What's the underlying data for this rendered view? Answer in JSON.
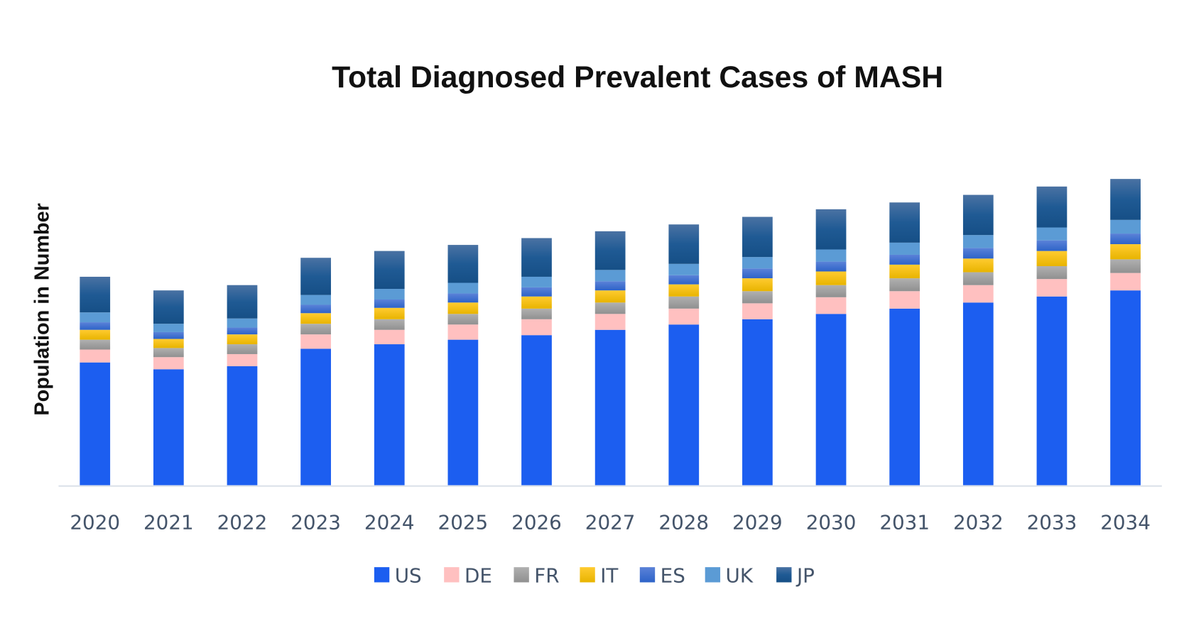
{
  "chart_data": {
    "type": "bar",
    "stacked": true,
    "title": "Total Diagnosed Prevalent Cases of MASH",
    "xlabel": "",
    "ylabel": "Population in Number",
    "y_tick_labels_shown": false,
    "ylim": [
      0,
      440
    ],
    "grid": false,
    "legend_placement": "bottom",
    "categories": [
      "2020",
      "2021",
      "2022",
      "2023",
      "2024",
      "2025",
      "2026",
      "2027",
      "2028",
      "2029",
      "2030",
      "2031",
      "2032",
      "2033",
      "2034"
    ],
    "series": [
      {
        "name": "US",
        "color": "#1c5ef0",
        "values": [
          162,
          153,
          157,
          180,
          186,
          192,
          198,
          205,
          212,
          219,
          226,
          233,
          241,
          249,
          257
        ]
      },
      {
        "name": "DE",
        "color": "#ffc0c0",
        "values": [
          17,
          16,
          16,
          19,
          19,
          20,
          21,
          21,
          21,
          21,
          22,
          23,
          23,
          23,
          23
        ]
      },
      {
        "name": "FR",
        "color": "#a5a5a5",
        "values": [
          13,
          12,
          13,
          14,
          14,
          14,
          14,
          15,
          16,
          16,
          16,
          17,
          17,
          17,
          18
        ]
      },
      {
        "name": "IT",
        "color": "#ffc000",
        "values": [
          13,
          12,
          13,
          14,
          15,
          15,
          16,
          16,
          16,
          17,
          18,
          18,
          18,
          20,
          20
        ]
      },
      {
        "name": "ES",
        "color": "#3f6fd0",
        "values": [
          10,
          9,
          9,
          11,
          11,
          12,
          12,
          12,
          12,
          13,
          13,
          13,
          14,
          14,
          14
        ]
      },
      {
        "name": "UK",
        "color": "#5b9bd5",
        "values": [
          13,
          11,
          12,
          13,
          14,
          14,
          14,
          15,
          15,
          15,
          16,
          16,
          17,
          17,
          18
        ]
      },
      {
        "name": "JP",
        "color": "#1f5590",
        "values": [
          47,
          44,
          44,
          49,
          50,
          50,
          51,
          51,
          52,
          53,
          53,
          53,
          53,
          54,
          54
        ]
      }
    ]
  }
}
